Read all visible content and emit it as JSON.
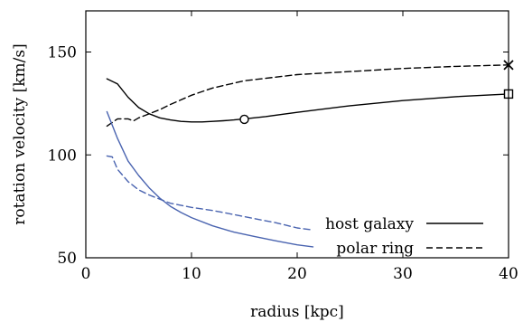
{
  "chart_data": {
    "type": "line",
    "xlabel": "radius [kpc]",
    "ylabel": "rotation velocity [km/s]",
    "xlim": [
      0,
      40
    ],
    "ylim": [
      50,
      170
    ],
    "xticks": [
      0,
      10,
      20,
      30,
      40
    ],
    "yticks": [
      50,
      100,
      150
    ],
    "grid": false,
    "legend_position": "bottom-right",
    "legend": [
      {
        "label": "host galaxy",
        "dash": "solid"
      },
      {
        "label": "polar ring",
        "dash": "dashed"
      }
    ],
    "series": [
      {
        "name": "host galaxy",
        "color": "#000000",
        "dash": "solid",
        "x": [
          2,
          3,
          4,
          5,
          6,
          7,
          8,
          9,
          10,
          11,
          12,
          13,
          14,
          15,
          17,
          20,
          25,
          30,
          35,
          40
        ],
        "y": [
          137,
          134.5,
          128,
          123,
          120,
          118,
          117,
          116.3,
          116,
          116,
          116.3,
          116.6,
          117,
          117.5,
          118.6,
          120.7,
          123.9,
          126.4,
          128.3,
          129.6
        ]
      },
      {
        "name": "polar ring",
        "color": "#000000",
        "dash": "dashed",
        "x": [
          2,
          3,
          4,
          4.5,
          5,
          6,
          7,
          8,
          10,
          12,
          15,
          20,
          25,
          30,
          35,
          40
        ],
        "y": [
          114,
          117.5,
          117.5,
          116.5,
          118,
          120,
          122,
          124.5,
          129,
          132.5,
          136,
          139,
          140.5,
          142,
          143,
          143.7
        ]
      },
      {
        "color": "#4a64b0",
        "dash": "solid",
        "x": [
          2,
          3,
          4,
          5,
          6,
          7,
          8,
          9,
          10,
          12,
          14,
          16,
          18,
          20,
          21.5
        ],
        "y": [
          121,
          108,
          97,
          90,
          84,
          79,
          75,
          72,
          69.5,
          65.5,
          62.5,
          60.3,
          58.2,
          56.3,
          55.3
        ]
      },
      {
        "color": "#4a64b0",
        "dash": "dashed",
        "x": [
          2,
          2.5,
          3,
          4,
          5,
          6,
          7,
          8,
          10,
          12,
          14,
          16,
          18,
          20,
          21.5
        ],
        "y": [
          99.5,
          99,
          93,
          87,
          83,
          80.5,
          78.5,
          76.5,
          74.5,
          73,
          71,
          69,
          67,
          64.5,
          63.5
        ]
      }
    ],
    "markers": [
      {
        "shape": "circle",
        "x": 15,
        "y": 117.3
      },
      {
        "shape": "cross",
        "x": 40,
        "y": 143.7
      },
      {
        "shape": "square",
        "x": 40,
        "y": 129.6
      }
    ]
  }
}
